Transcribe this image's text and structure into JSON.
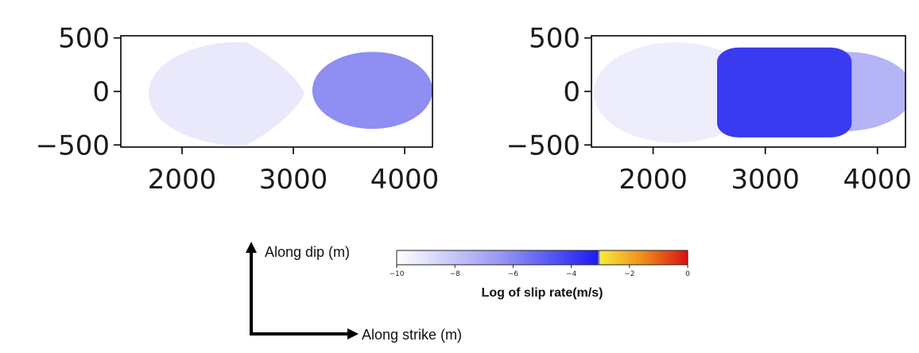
{
  "chart_data": [
    {
      "type": "heatmap",
      "title": "",
      "xlabel": "",
      "ylabel": "",
      "xlim": [
        1450,
        4250
      ],
      "ylim": [
        -520,
        520
      ],
      "xticks": [
        2000,
        3000,
        4000
      ],
      "yticks": [
        500,
        0,
        -500
      ],
      "xtick_labels": [
        "2000",
        "3000",
        "4000"
      ],
      "ytick_labels": [
        "500",
        "0",
        "−500"
      ],
      "regions": [
        {
          "shape": "rupture-lobe-left",
          "cx": 2400,
          "cy": -20,
          "rx": 700,
          "ry": 480,
          "log_slip_rate": -9.2,
          "color": "#e9e9fb"
        },
        {
          "shape": "ellipse",
          "cx": 3710,
          "cy": 10,
          "rx": 540,
          "ry": 360,
          "log_slip_rate": -6.5,
          "color": "#8e8ef3"
        }
      ]
    },
    {
      "type": "heatmap",
      "title": "",
      "xlabel": "",
      "ylabel": "",
      "xlim": [
        1450,
        4250
      ],
      "ylim": [
        -520,
        520
      ],
      "xticks": [
        2000,
        3000,
        4000
      ],
      "yticks": [
        500,
        0,
        -500
      ],
      "xtick_labels": [
        "2000",
        "3000",
        "4000"
      ],
      "ytick_labels": [
        "500",
        "0",
        "−500"
      ],
      "regions": [
        {
          "shape": "ellipse",
          "cx": 2200,
          "cy": -10,
          "rx": 730,
          "ry": 470,
          "log_slip_rate": -9.5,
          "color": "#ededfc"
        },
        {
          "shape": "ellipse",
          "cx": 3720,
          "cy": 0,
          "rx": 600,
          "ry": 370,
          "log_slip_rate": -7.5,
          "color": "#b4b4f6"
        },
        {
          "shape": "rounded-rect",
          "cx": 3170,
          "cy": -10,
          "rx": 600,
          "ry": 420,
          "log_slip_rate": -3.6,
          "color": "#3a3af0"
        }
      ]
    }
  ],
  "colorbar": {
    "label": "Log of slip rate(m/s)",
    "min": -10,
    "max": 0,
    "ticks": [
      -10,
      -8,
      -6,
      -4,
      -2,
      0
    ],
    "tick_labels": [
      "−10",
      "−8",
      "−6",
      "−4",
      "−2",
      "0"
    ],
    "stops": [
      {
        "value": -10,
        "color": "#ffffff"
      },
      {
        "value": -6.5,
        "color": "#9a9af4"
      },
      {
        "value": -3.1,
        "color": "#1c1cf5"
      },
      {
        "value": -3.0,
        "color": "#f7ea3c"
      },
      {
        "value": -1.5,
        "color": "#ee8a1e"
      },
      {
        "value": 0,
        "color": "#d61212"
      }
    ]
  },
  "axes_guide": {
    "vertical_label": "Along dip (m)",
    "horizontal_label": "Along strike (m)"
  }
}
